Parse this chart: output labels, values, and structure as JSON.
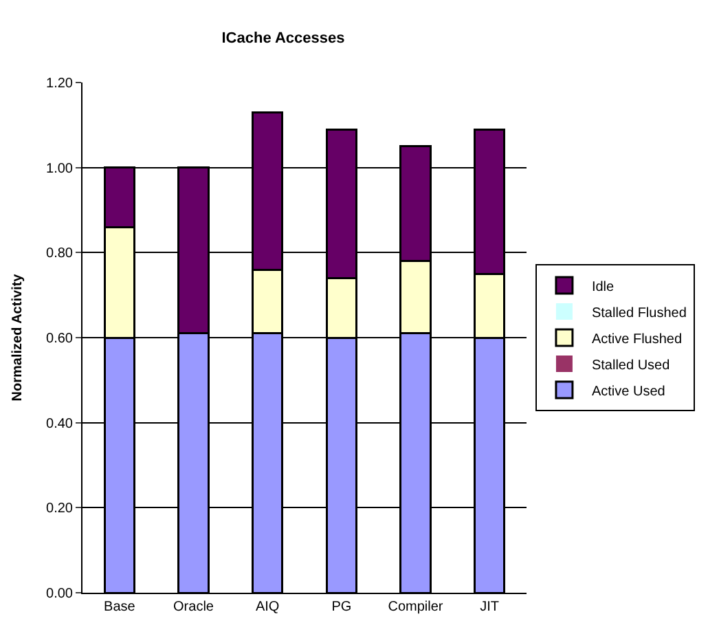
{
  "chart_data": {
    "type": "bar",
    "title": "ICache Accesses",
    "ylabel": "Normalized Activity",
    "stacked": true,
    "categories": [
      "Base",
      "Oracle",
      "AIQ",
      "PG",
      "Compiler",
      "JIT"
    ],
    "series": [
      {
        "name": "Active Used",
        "color": "#9999ff",
        "values": [
          0.6,
          0.61,
          0.61,
          0.6,
          0.61,
          0.6
        ]
      },
      {
        "name": "Stalled Used",
        "color": "#993366",
        "values": [
          0,
          0,
          0,
          0,
          0,
          0
        ]
      },
      {
        "name": "Active Flushed",
        "color": "#ffffcc",
        "values": [
          0.26,
          0,
          0.15,
          0.14,
          0.17,
          0.15
        ]
      },
      {
        "name": "Stalled Flushed",
        "color": "#ccffff",
        "values": [
          0,
          0,
          0,
          0,
          0,
          0
        ]
      },
      {
        "name": "Idle",
        "color": "#660066",
        "values": [
          0.14,
          0.39,
          0.37,
          0.35,
          0.27,
          0.34
        ]
      }
    ],
    "ylim": [
      0,
      1.2
    ],
    "yticks": [
      {
        "value": 0,
        "label": "0.00"
      },
      {
        "value": 0.2,
        "label": "0.20"
      },
      {
        "value": 0.4,
        "label": "0.40"
      },
      {
        "value": 0.6,
        "label": "0.60"
      },
      {
        "value": 0.8,
        "label": "0.80"
      },
      {
        "value": 1.0,
        "label": "1.00"
      },
      {
        "value": 1.2,
        "label": "1.20"
      }
    ],
    "grid": "y",
    "legend": "right"
  }
}
